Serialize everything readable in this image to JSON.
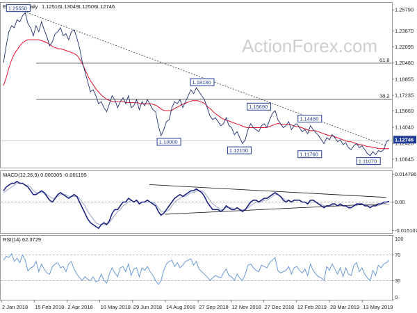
{
  "chart_data": {
    "type": "line",
    "price_pane": {
      "title": "EURUSD,Daily",
      "ohlc": [
        "1.12516",
        "1.13049",
        "1.12506",
        "1.12746"
      ],
      "current_price_label": "1.12746",
      "watermark": "ActionForex.com",
      "y_ticks": [
        "1.25790",
        "1.23670",
        "1.22095",
        "1.20480",
        "1.18855",
        "1.17235",
        "1.15660",
        "1.14040",
        "1.12420",
        "1.10845"
      ],
      "ylim": [
        1.1,
        1.265
      ],
      "fib_levels": [
        {
          "label": "61.8",
          "value": 1.2045
        },
        {
          "label": "38.2",
          "value": 1.1685
        }
      ],
      "support_line": {
        "value": 1.127
      },
      "trendline": {
        "from": {
          "x": 0.02,
          "y": 1.262
        },
        "to": {
          "x": 0.985,
          "y": 1.122
        }
      },
      "annotations": [
        {
          "label": "1.25550",
          "x": 0.045,
          "y": 1.2555
        },
        {
          "label": "1.18140",
          "x": 0.515,
          "y": 1.1814
        },
        {
          "label": "1.13000",
          "x": 0.43,
          "y": 1.13
        },
        {
          "label": "1.12150",
          "x": 0.61,
          "y": 1.1215
        },
        {
          "label": "1.15690",
          "x": 0.66,
          "y": 1.1569
        },
        {
          "label": "1.14480",
          "x": 0.79,
          "y": 1.1448
        },
        {
          "label": "1.11760",
          "x": 0.79,
          "y": 1.1176
        },
        {
          "label": "1.11070",
          "x": 0.94,
          "y": 1.1107
        }
      ],
      "close": [
        1.205,
        1.222,
        1.236,
        1.242,
        1.24,
        1.248,
        1.246,
        1.252,
        1.255,
        1.244,
        1.24,
        1.232,
        1.242,
        1.236,
        1.246,
        1.238,
        1.231,
        1.222,
        1.226,
        1.234,
        1.236,
        1.24,
        1.232,
        1.234,
        1.228,
        1.236,
        1.238,
        1.23,
        1.22,
        1.206,
        1.196,
        1.186,
        1.176,
        1.178,
        1.172,
        1.164,
        1.166,
        1.16,
        1.156,
        1.164,
        1.172,
        1.168,
        1.16,
        1.166,
        1.17,
        1.164,
        1.172,
        1.16,
        1.162,
        1.168,
        1.158,
        1.166,
        1.162,
        1.168,
        1.163,
        1.158,
        1.156,
        1.142,
        1.132,
        1.138,
        1.146,
        1.148,
        1.16,
        1.166,
        1.164,
        1.168,
        1.16,
        1.166,
        1.172,
        1.178,
        1.174,
        1.18,
        1.176,
        1.172,
        1.168,
        1.16,
        1.152,
        1.148,
        1.15,
        1.146,
        1.142,
        1.144,
        1.15,
        1.142,
        1.14,
        1.133,
        1.136,
        1.13,
        1.124,
        1.128,
        1.138,
        1.144,
        1.14,
        1.138,
        1.136,
        1.142,
        1.144,
        1.14,
        1.148,
        1.154,
        1.157,
        1.148,
        1.144,
        1.14,
        1.142,
        1.146,
        1.138,
        1.142,
        1.144,
        1.14,
        1.136,
        1.138,
        1.134,
        1.142,
        1.138,
        1.135,
        1.132,
        1.128,
        1.124,
        1.13,
        1.128,
        1.133,
        1.13,
        1.126,
        1.128,
        1.123,
        1.125,
        1.12,
        1.118,
        1.122,
        1.124,
        1.12,
        1.122,
        1.118,
        1.114,
        1.112,
        1.116,
        1.113,
        1.117,
        1.116,
        1.118,
        1.126,
        1.128
      ],
      "ma": [
        1.182,
        1.19,
        1.2,
        1.208,
        1.214,
        1.218,
        1.222,
        1.225,
        1.227,
        1.228,
        1.228,
        1.228,
        1.228,
        1.228,
        1.227,
        1.226,
        1.225,
        1.223,
        1.221,
        1.22,
        1.219,
        1.219,
        1.218,
        1.217,
        1.216,
        1.215,
        1.214,
        1.212,
        1.208,
        1.203,
        1.197,
        1.191,
        1.186,
        1.182,
        1.178,
        1.175,
        1.172,
        1.17,
        1.168,
        1.167,
        1.166,
        1.166,
        1.166,
        1.166,
        1.166,
        1.165,
        1.165,
        1.165,
        1.165,
        1.165,
        1.164,
        1.164,
        1.164,
        1.164,
        1.164,
        1.163,
        1.162,
        1.16,
        1.158,
        1.157,
        1.157,
        1.157,
        1.158,
        1.16,
        1.161,
        1.163,
        1.164,
        1.165,
        1.166,
        1.167,
        1.167,
        1.167,
        1.166,
        1.165,
        1.163,
        1.16,
        1.158,
        1.155,
        1.153,
        1.151,
        1.149,
        1.148,
        1.147,
        1.146,
        1.145,
        1.144,
        1.143,
        1.142,
        1.141,
        1.14,
        1.14,
        1.14,
        1.14,
        1.14,
        1.14,
        1.14,
        1.14,
        1.141,
        1.142,
        1.143,
        1.144,
        1.144,
        1.143,
        1.143,
        1.143,
        1.143,
        1.142,
        1.141,
        1.141,
        1.14,
        1.139,
        1.138,
        1.137,
        1.137,
        1.137,
        1.136,
        1.135,
        1.134,
        1.133,
        1.132,
        1.132,
        1.131,
        1.13,
        1.129,
        1.128,
        1.127,
        1.126,
        1.126,
        1.125,
        1.124,
        1.123,
        1.123,
        1.122,
        1.121,
        1.121,
        1.12,
        1.12,
        1.119,
        1.119,
        1.119,
        1.119,
        1.119
      ]
    },
    "macd_pane": {
      "title": "MACD(12,26,9) 0.000305 -0.001195",
      "y_ticks": [
        "0.014786",
        "0.00",
        "-0.015107"
      ],
      "ylim": [
        -0.0165,
        0.0165
      ],
      "zero_level": 0,
      "upper_trendline": {
        "from": {
          "x": 0.38,
          "y": 0.0093
        },
        "to": {
          "x": 0.985,
          "y": 0.0025
        }
      },
      "lower_trendline": {
        "from": {
          "x": 0.42,
          "y": -0.0065
        },
        "to": {
          "x": 0.985,
          "y": -0.0008
        }
      },
      "macd": [
        0.006,
        0.008,
        0.009,
        0.01,
        0.01,
        0.011,
        0.01,
        0.01,
        0.009,
        0.008,
        0.006,
        0.004,
        0.004,
        0.005,
        0.006,
        0.005,
        0.003,
        0.001,
        0.0,
        0.002,
        0.004,
        0.005,
        0.004,
        0.003,
        0.002,
        0.003,
        0.004,
        0.003,
        0.0,
        -0.003,
        -0.006,
        -0.009,
        -0.011,
        -0.012,
        -0.013,
        -0.014,
        -0.012,
        -0.011,
        -0.012,
        -0.01,
        -0.006,
        -0.004,
        -0.004,
        -0.002,
        0.0,
        0.0,
        0.002,
        0.001,
        0.0,
        0.001,
        -0.001,
        0.0,
        0.0,
        0.001,
        0.0,
        -0.001,
        -0.002,
        -0.005,
        -0.007,
        -0.006,
        -0.004,
        -0.002,
        0.0,
        0.002,
        0.003,
        0.004,
        0.003,
        0.004,
        0.005,
        0.006,
        0.006,
        0.007,
        0.006,
        0.005,
        0.003,
        0.0,
        -0.002,
        -0.004,
        -0.004,
        -0.004,
        -0.005,
        -0.004,
        -0.002,
        -0.003,
        -0.004,
        -0.004,
        -0.003,
        -0.004,
        -0.005,
        -0.004,
        -0.002,
        0.0,
        0.001,
        0.001,
        0.0,
        0.001,
        0.002,
        0.002,
        0.003,
        0.004,
        0.005,
        0.004,
        0.003,
        0.001,
        0.0,
        0.001,
        0.0,
        0.001,
        0.001,
        0.001,
        0.0,
        0.0,
        -0.001,
        0.001,
        0.001,
        0.0,
        -0.001,
        -0.002,
        -0.003,
        -0.002,
        -0.002,
        -0.001,
        -0.001,
        -0.002,
        -0.001,
        -0.002,
        -0.002,
        -0.003,
        -0.003,
        -0.002,
        -0.001,
        -0.001,
        -0.001,
        -0.002,
        -0.002,
        -0.003,
        -0.002,
        -0.002,
        -0.001,
        -0.001,
        0.0,
        0.0,
        0.0003
      ],
      "signal": [
        0.005,
        0.006,
        0.007,
        0.008,
        0.009,
        0.01,
        0.01,
        0.01,
        0.009,
        0.009,
        0.008,
        0.006,
        0.005,
        0.005,
        0.005,
        0.005,
        0.004,
        0.003,
        0.002,
        0.002,
        0.003,
        0.004,
        0.004,
        0.004,
        0.003,
        0.003,
        0.003,
        0.003,
        0.002,
        0.0,
        -0.002,
        -0.005,
        -0.007,
        -0.009,
        -0.011,
        -0.012,
        -0.012,
        -0.012,
        -0.012,
        -0.011,
        -0.009,
        -0.007,
        -0.005,
        -0.004,
        -0.002,
        -0.001,
        0.0,
        0.001,
        0.0,
        0.001,
        0.0,
        0.0,
        0.0,
        0.0,
        0.0,
        0.0,
        -0.001,
        -0.003,
        -0.005,
        -0.005,
        -0.005,
        -0.004,
        -0.002,
        0.0,
        0.001,
        0.002,
        0.003,
        0.003,
        0.004,
        0.005,
        0.005,
        0.006,
        0.006,
        0.006,
        0.005,
        0.003,
        0.001,
        -0.001,
        -0.002,
        -0.003,
        -0.004,
        -0.004,
        -0.003,
        -0.003,
        -0.003,
        -0.004,
        -0.003,
        -0.004,
        -0.004,
        -0.004,
        -0.003,
        -0.002,
        -0.001,
        0.0,
        0.0,
        0.0,
        0.001,
        0.001,
        0.002,
        0.003,
        0.004,
        0.004,
        0.003,
        0.002,
        0.001,
        0.001,
        0.0,
        0.001,
        0.001,
        0.001,
        0.0,
        0.0,
        -0.001,
        0.0,
        0.0,
        0.0,
        -0.001,
        -0.001,
        -0.002,
        -0.002,
        -0.002,
        -0.002,
        -0.001,
        -0.002,
        -0.001,
        -0.002,
        -0.002,
        -0.002,
        -0.003,
        -0.002,
        -0.002,
        -0.001,
        -0.001,
        -0.002,
        -0.002,
        -0.002,
        -0.002,
        -0.002,
        -0.002,
        -0.001,
        -0.001,
        -0.001,
        -0.0012
      ]
    },
    "rsi_pane": {
      "title": "RSI(14) 62.3729",
      "y_ticks": [
        "100",
        "70",
        "30",
        "0"
      ],
      "ylim": [
        0,
        100
      ],
      "levels": [
        70,
        30
      ],
      "rsi": [
        62,
        68,
        66,
        72,
        60,
        65,
        58,
        70,
        62,
        45,
        50,
        52,
        60,
        44,
        56,
        48,
        42,
        40,
        52,
        56,
        58,
        50,
        52,
        44,
        56,
        60,
        48,
        40,
        35,
        30,
        36,
        32,
        30,
        36,
        28,
        30,
        40,
        30,
        26,
        40,
        50,
        42,
        36,
        50,
        52,
        44,
        56,
        38,
        48,
        50,
        36,
        50,
        46,
        52,
        44,
        38,
        30,
        24,
        30,
        46,
        56,
        60,
        62,
        52,
        58,
        50,
        54,
        60,
        62,
        64,
        54,
        60,
        48,
        44,
        40,
        36,
        30,
        34,
        38,
        36,
        34,
        42,
        48,
        38,
        36,
        30,
        40,
        34,
        30,
        40,
        54,
        56,
        50,
        46,
        44,
        54,
        52,
        50,
        58,
        62,
        66,
        46,
        42,
        44,
        46,
        52,
        40,
        50,
        52,
        46,
        42,
        48,
        38,
        56,
        46,
        40,
        36,
        34,
        30,
        52,
        46,
        56,
        48,
        40,
        50,
        36,
        50,
        40,
        38,
        54,
        58,
        44,
        50,
        40,
        34,
        30,
        46,
        38,
        54,
        50,
        56,
        58,
        62
      ]
    },
    "x_ticks": [
      "2 Jan 2018",
      "15 Feb 2018",
      "2 Apr 2018",
      "16 May 2018",
      "29 Jun 2018",
      "14 Aug 2018",
      "27 Sep 2018",
      "12 Nov 2018",
      "27 Dec 2018",
      "12 Feb 2019",
      "28 Mar 2019",
      "13 May 2019"
    ]
  },
  "colors": {
    "price": "#1f2f6e",
    "ma": "#e0102a",
    "trendline": "#333333",
    "fib": "#222222",
    "macd": "#1a237e",
    "signal": "#9aa4c8",
    "rsi": "#6a9ad6",
    "accent": "#1f3a93"
  }
}
